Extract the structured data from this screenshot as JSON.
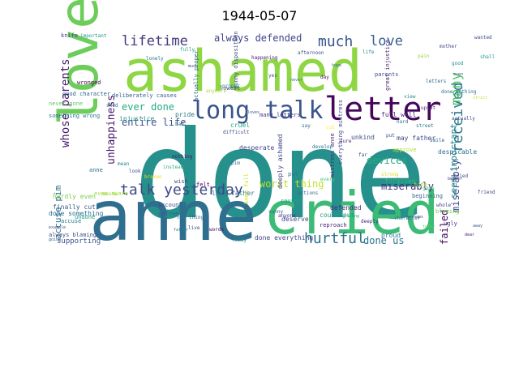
{
  "title": "1944-05-07",
  "words": [
    {
      "text": "done",
      "color": "#26918c"
    },
    {
      "text": "ashamed",
      "color": "#8fd644"
    },
    {
      "text": "anne",
      "color": "#2e6e8e"
    },
    {
      "text": "cried",
      "color": "#3bbb75"
    },
    {
      "text": "love",
      "color": "#6ccd5a"
    },
    {
      "text": "letter",
      "color": "#46075a"
    },
    {
      "text": "long talk",
      "color": "#3a548c"
    },
    {
      "text": "talk yesterday",
      "color": "#3f4889"
    },
    {
      "text": "hurtful",
      "color": "#2c728e"
    },
    {
      "text": "lifetime",
      "color": "#453781"
    },
    {
      "text": "much",
      "color": "#3a538b"
    },
    {
      "text": "love",
      "color": "#35608d"
    },
    {
      "text": "whose parents",
      "color": "#481b6d"
    },
    {
      "text": "received",
      "color": "#2a778e"
    },
    {
      "text": "many",
      "color": "#52c569"
    },
    {
      "text": "always defended",
      "color": "#404387"
    },
    {
      "text": "ever done",
      "color": "#25ab82"
    },
    {
      "text": "entire life",
      "color": "#3b518b"
    },
    {
      "text": "unhappiness",
      "color": "#481a6c"
    },
    {
      "text": "worst thing",
      "color": "#c2df23"
    },
    {
      "text": "miserably",
      "color": "#472c7a"
    },
    {
      "text": "devices",
      "color": "#26ad81"
    },
    {
      "text": "done us",
      "color": "#2c738e"
    },
    {
      "text": "failed",
      "color": "#460a5d"
    },
    {
      "text": "miserably",
      "color": "#3e4989"
    },
    {
      "text": "seem important",
      "color": "#25848e"
    },
    {
      "text": "accuse pim",
      "color": "#2d718e"
    },
    {
      "text": "supporting",
      "color": "#3b528b"
    },
    {
      "text": "deliberately causes",
      "color": "#375a8c"
    },
    {
      "text": "good character",
      "color": "#32658e"
    },
    {
      "text": "wronged",
      "color": "#440154"
    },
    {
      "text": "never gone",
      "color": "#5ec962"
    },
    {
      "text": "something wrong",
      "color": "#29788e"
    },
    {
      "text": "hardly even",
      "color": "#7ad151"
    },
    {
      "text": "finally cut",
      "color": "#365c8d"
    },
    {
      "text": "done something",
      "color": "#2e6f8e"
    },
    {
      "text": "always blaming",
      "color": "#3e4a89"
    },
    {
      "text": "deeply ashamed",
      "color": "#404588"
    },
    {
      "text": "mistress anne",
      "color": "#472d7b"
    },
    {
      "text": "unkind",
      "color": "#3d4e8a"
    },
    {
      "text": "forgiven",
      "color": "#35b779"
    },
    {
      "text": "desperate",
      "color": "#414487"
    },
    {
      "text": "actually proper",
      "color": "#31688e"
    },
    {
      "text": "lowest",
      "color": "#433e85"
    },
    {
      "text": "sunny disposition",
      "color": "#3c4f8a"
    },
    {
      "text": "many letters",
      "color": "#453882"
    },
    {
      "text": "full well",
      "color": "#482979"
    },
    {
      "text": "approve",
      "color": "#b5de2b"
    },
    {
      "text": "despicable",
      "color": "#2d708e"
    },
    {
      "text": "great injustice",
      "color": "#482475"
    },
    {
      "text": "parents",
      "color": "#3b528b"
    },
    {
      "text": "could put",
      "color": "#1f9a8a"
    },
    {
      "text": "reproach",
      "color": "#482576"
    },
    {
      "text": "proud",
      "color": "#2a788e"
    },
    {
      "text": "blaming",
      "color": "#6ece58"
    },
    {
      "text": "ugly",
      "color": "#453581"
    },
    {
      "text": "pride",
      "color": "#287d8e"
    },
    {
      "text": "cruel",
      "color": "#22a884"
    },
    {
      "text": "deserve",
      "color": "#3f4788"
    },
    {
      "text": "causes",
      "color": "#1fa188"
    },
    {
      "text": "defended",
      "color": "#482878"
    },
    {
      "text": "injustice",
      "color": "#21918c"
    },
    {
      "text": "account",
      "color": "#3e4c8a"
    },
    {
      "text": "untrue",
      "color": "#38588c"
    },
    {
      "text": "even aware",
      "color": "#9fda3a"
    },
    {
      "text": "accuse",
      "color": "#2b758e"
    },
    {
      "text": "undone",
      "color": "#1e9c89"
    },
    {
      "text": "knife",
      "color": "#433d84"
    },
    {
      "text": "important",
      "color": "#20928c"
    },
    {
      "text": "like father",
      "color": "#2a768e"
    },
    {
      "text": "knew full",
      "color": "#d2e21b"
    },
    {
      "text": "may father",
      "color": "#3e4a89"
    },
    {
      "text": "every",
      "color": "#44bf70"
    },
    {
      "text": "aware",
      "color": "#a2da37"
    },
    {
      "text": "lonely",
      "color": "#2c728e"
    },
    {
      "text": "actions",
      "color": "#31688e"
    },
    {
      "text": "sunny",
      "color": "#34618d"
    },
    {
      "text": "develop",
      "color": "#2d708e"
    },
    {
      "text": "difficult",
      "color": "#3d4d8a"
    },
    {
      "text": "proper",
      "color": "#25838e"
    },
    {
      "text": "done everything",
      "color": "#404688"
    },
    {
      "text": "everything mistress",
      "color": "#3f4889"
    },
    {
      "text": "character",
      "color": "#297a8e"
    },
    {
      "text": "wrong",
      "color": "#1f968b"
    },
    {
      "text": "anyone",
      "color": "#46337f"
    },
    {
      "text": "happening",
      "color": "#482071"
    },
    {
      "text": "writing",
      "color": "#21a685"
    },
    {
      "text": "today",
      "color": "#5cc863"
    },
    {
      "text": "hard",
      "color": "#2b748e"
    },
    {
      "text": "afternoon",
      "color": "#3c4f8a"
    },
    {
      "text": "shed",
      "color": "#2f6c8e"
    },
    {
      "text": "words",
      "color": "#440154"
    },
    {
      "text": "ready",
      "color": "#1f958b"
    },
    {
      "text": "example",
      "color": "#3e4c8a"
    },
    {
      "text": "going",
      "color": "#375b8d"
    },
    {
      "text": "beginning",
      "color": "#32658e"
    },
    {
      "text": "tone",
      "color": "#a8db34"
    },
    {
      "text": "look",
      "color": "#3b528b"
    },
    {
      "text": "instead",
      "color": "#29af7f"
    },
    {
      "text": "broken",
      "color": "#e5e419"
    },
    {
      "text": "wish",
      "color": "#433e85"
    },
    {
      "text": "felt",
      "color": "#440256"
    },
    {
      "text": "mean",
      "color": "#23888e"
    },
    {
      "text": "strong",
      "color": "#d8e219"
    },
    {
      "text": "put",
      "color": "#3f4788"
    },
    {
      "text": "perhaps",
      "color": "#3b528b"
    },
    {
      "text": "gone",
      "color": "#3cbc74"
    },
    {
      "text": "anne",
      "color": "#2e6e8e"
    },
    {
      "text": "smile",
      "color": "#34608d"
    },
    {
      "text": "deeply",
      "color": "#482677"
    },
    {
      "text": "thing",
      "color": "#355e8d"
    },
    {
      "text": "father",
      "color": "#26828e"
    },
    {
      "text": "live",
      "color": "#3e4989"
    },
    {
      "text": "anymore",
      "color": "#a5db36"
    },
    {
      "text": "put",
      "color": "#2b758e"
    },
    {
      "text": "bad",
      "color": "#2a788e"
    },
    {
      "text": "nothing",
      "color": "#481467"
    },
    {
      "text": "fully",
      "color": "#1fa187"
    },
    {
      "text": "much",
      "color": "#414487"
    },
    {
      "text": "pim",
      "color": "#32648e"
    },
    {
      "text": "loves",
      "color": "#3b528b"
    },
    {
      "text": "say",
      "color": "#2c728e"
    },
    {
      "text": "cut",
      "color": "#fde725"
    },
    {
      "text": "sure",
      "color": "#481f70"
    },
    {
      "text": "far",
      "color": "#3f4788"
    },
    {
      "text": "view",
      "color": "#26828e"
    },
    {
      "text": "upset",
      "color": "#482878"
    },
    {
      "text": "done nothing",
      "color": "#2e6d8e"
    },
    {
      "text": "actually",
      "color": "#3d4e8a"
    },
    {
      "text": "life",
      "color": "#238a8d"
    },
    {
      "text": "pain",
      "color": "#90d743"
    },
    {
      "text": "letters",
      "color": "#2f6b8e"
    },
    {
      "text": "mother",
      "color": "#3e4989"
    },
    {
      "text": "good",
      "color": "#20928c"
    },
    {
      "text": "wanted",
      "color": "#3d4d8a"
    },
    {
      "text": "shall",
      "color": "#1f998a"
    },
    {
      "text": "even",
      "color": "#33638d"
    },
    {
      "text": "strict",
      "color": "#c8e020"
    },
    {
      "text": "street",
      "color": "#2a778e"
    },
    {
      "text": "tried",
      "color": "#39568c"
    },
    {
      "text": "friend",
      "color": "#3e4a89"
    },
    {
      "text": "better",
      "color": "#453781"
    },
    {
      "text": "whole",
      "color": "#3f4788"
    },
    {
      "text": "dear",
      "color": "#482173"
    },
    {
      "text": "away",
      "color": "#355f8d"
    },
    {
      "text": "hope",
      "color": "#2b748e"
    },
    {
      "text": "yes",
      "color": "#3b528b"
    },
    {
      "text": "never",
      "color": "#2d708e"
    },
    {
      "text": "day",
      "color": "#481769"
    }
  ]
}
